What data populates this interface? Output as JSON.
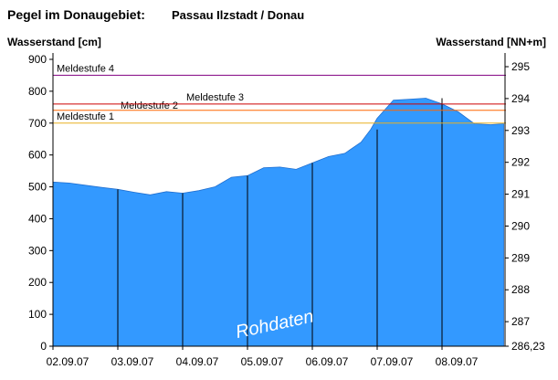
{
  "header": {
    "title": "Pegel im Donaugebiet:",
    "station": "Passau Ilzstadt / Donau"
  },
  "chart_data": {
    "type": "area",
    "ylabel_left": "Wasserstand [cm]",
    "ylabel_right": "Wasserstand [NN+m]",
    "ylim": [
      0,
      920
    ],
    "yticks_left": [
      0,
      100,
      200,
      300,
      400,
      500,
      600,
      700,
      800,
      900
    ],
    "yticks_right": [
      {
        "value": 0,
        "label": "286,23"
      },
      {
        "value": 77,
        "label": "287"
      },
      {
        "value": 177,
        "label": "288"
      },
      {
        "value": 277,
        "label": "289"
      },
      {
        "value": 377,
        "label": "290"
      },
      {
        "value": 477,
        "label": "291"
      },
      {
        "value": 577,
        "label": "292"
      },
      {
        "value": 677,
        "label": "293"
      },
      {
        "value": 777,
        "label": "294"
      },
      {
        "value": 877,
        "label": "295"
      }
    ],
    "x_range": [
      0,
      6.95
    ],
    "x_day_labels": [
      "02.09.07",
      "03.09.07",
      "04.09.07",
      "05.09.07",
      "06.09.07",
      "07.09.07",
      "08.09.07"
    ],
    "fill_color": "#3399ff",
    "thresholds": [
      {
        "name": "Meldestufe 1",
        "value": 700,
        "color": "#e8b020"
      },
      {
        "name": "Meldestufe 2",
        "value": 740,
        "color": "#ff6600"
      },
      {
        "name": "Meldestufe 3",
        "value": 760,
        "color": "#cc0000"
      },
      {
        "name": "Meldestufe 4",
        "value": 850,
        "color": "#800080"
      }
    ],
    "annotation": "Rohdaten",
    "series": [
      {
        "x": [
          0,
          0.25,
          0.5,
          0.75,
          1.0,
          1.25,
          1.5,
          1.75,
          2.0,
          2.25,
          2.5,
          2.75,
          3.0,
          3.25,
          3.5,
          3.75,
          4.0,
          4.25,
          4.5,
          4.75,
          4.9,
          5.0,
          5.25,
          5.5,
          5.75,
          6.0,
          6.25,
          6.5,
          6.75,
          6.95
        ],
        "values": [
          515,
          512,
          505,
          498,
          492,
          483,
          475,
          485,
          480,
          488,
          500,
          530,
          535,
          560,
          562,
          555,
          575,
          595,
          605,
          640,
          680,
          715,
          772,
          775,
          778,
          760,
          735,
          698,
          695,
          698
        ]
      }
    ]
  }
}
